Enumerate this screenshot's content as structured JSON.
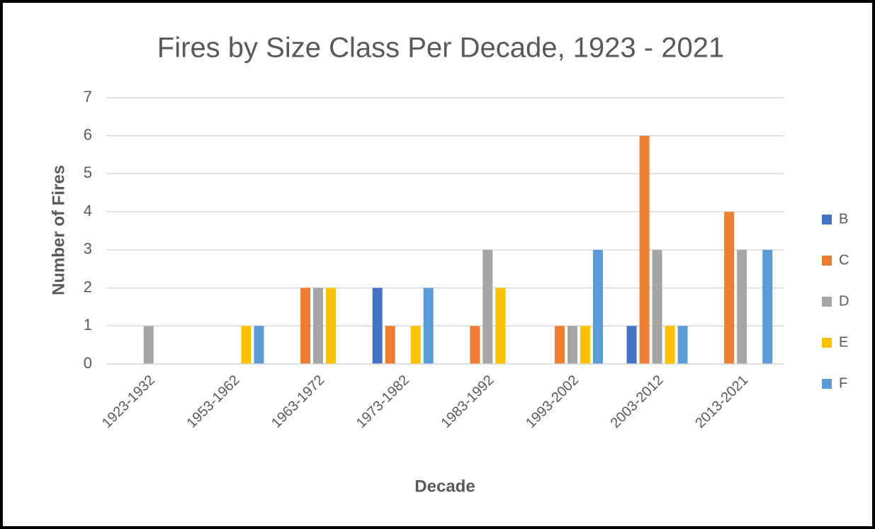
{
  "chart_data": {
    "type": "bar",
    "title": "Fires by Size Class Per Decade, 1923 - 2021",
    "x_label": "Decade",
    "y_label": "Number of Fires",
    "categories": [
      "1923-1932",
      "1953-1962",
      "1963-1972",
      "1973-1982",
      "1983-1992",
      "1993-2002",
      "2003-2012",
      "2013-2021"
    ],
    "series": [
      {
        "name": "B",
        "color": "#4472c4",
        "values": [
          0,
          0,
          0,
          2,
          0,
          0,
          1,
          0
        ]
      },
      {
        "name": "C",
        "color": "#ed7d31",
        "values": [
          0,
          0,
          2,
          1,
          1,
          1,
          6,
          4
        ]
      },
      {
        "name": "D",
        "color": "#a5a5a5",
        "values": [
          1,
          0,
          2,
          0,
          3,
          1,
          3,
          3
        ]
      },
      {
        "name": "E",
        "color": "#ffc000",
        "values": [
          0,
          1,
          2,
          1,
          2,
          1,
          1,
          0
        ]
      },
      {
        "name": "F",
        "color": "#5b9bd5",
        "values": [
          0,
          1,
          0,
          2,
          0,
          3,
          1,
          3
        ]
      }
    ],
    "ylim": [
      0,
      7
    ],
    "yticks": [
      0,
      1,
      2,
      3,
      4,
      5,
      6,
      7
    ],
    "grid": true,
    "legend": "right"
  }
}
